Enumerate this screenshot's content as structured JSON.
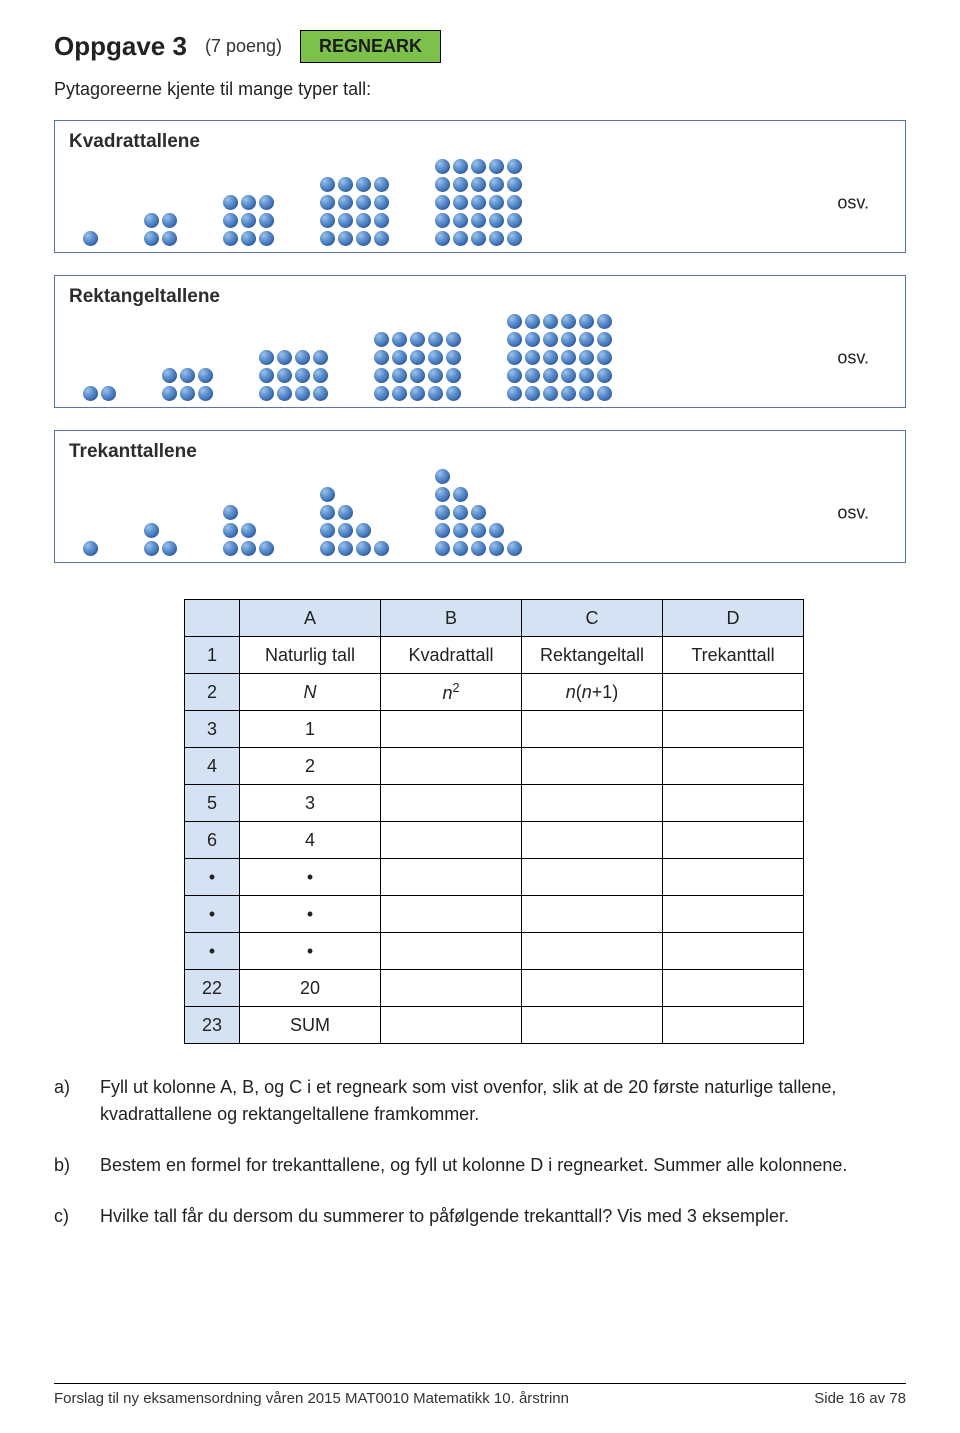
{
  "colors": {
    "panel_border": "#5b75aa",
    "sheet_header_bg": "#d5e2f4",
    "dot_gradient": [
      "#9dc2e8",
      "#5b8fce",
      "#3d6fb4",
      "#2f5a98"
    ],
    "badge_bg": "#7cc24a",
    "table_border": "#000000"
  },
  "header": {
    "task_label": "Oppgave 3",
    "points": "(7 poeng)",
    "badge": "REGNEARK"
  },
  "intro": "Pytagoreerne kjente til mange typer tall:",
  "panels": [
    {
      "title": "Kvadrattallene",
      "osv": "osv.",
      "kind": "grid",
      "shapes": [
        {
          "rows": 1,
          "cols": 1
        },
        {
          "rows": 2,
          "cols": 2
        },
        {
          "rows": 3,
          "cols": 3
        },
        {
          "rows": 4,
          "cols": 4
        },
        {
          "rows": 5,
          "cols": 5
        }
      ]
    },
    {
      "title": "Rektangeltallene",
      "osv": "osv.",
      "kind": "grid",
      "shapes": [
        {
          "rows": 1,
          "cols": 2
        },
        {
          "rows": 2,
          "cols": 3
        },
        {
          "rows": 3,
          "cols": 4
        },
        {
          "rows": 4,
          "cols": 5
        },
        {
          "rows": 5,
          "cols": 6
        }
      ]
    },
    {
      "title": "Trekanttallene",
      "osv": "osv.",
      "kind": "triangle",
      "shapes": [
        {
          "rows": 1
        },
        {
          "rows": 2
        },
        {
          "rows": 3
        },
        {
          "rows": 4
        },
        {
          "rows": 5
        }
      ]
    }
  ],
  "sheet": {
    "col_headers": [
      "A",
      "B",
      "C",
      "D"
    ],
    "rows": [
      {
        "idx": "1",
        "cells": [
          "Naturlig tall",
          "Kvadrattall",
          "Rektangeltall",
          "Trekanttall"
        ]
      },
      {
        "idx": "2",
        "cells": [
          "<span class='italic'>N</span>",
          "<span class='italic'>n</span><sup>2</sup>",
          "<span class='italic'>n</span>(<span class='italic'>n</span>+1)",
          ""
        ]
      },
      {
        "idx": "3",
        "cells": [
          "1",
          "",
          "",
          ""
        ]
      },
      {
        "idx": "4",
        "cells": [
          "2",
          "",
          "",
          ""
        ]
      },
      {
        "idx": "5",
        "cells": [
          "3",
          "",
          "",
          ""
        ]
      },
      {
        "idx": "6",
        "cells": [
          "4",
          "",
          "",
          ""
        ]
      },
      {
        "idx": "•",
        "cells": [
          "•",
          "",
          "",
          ""
        ]
      },
      {
        "idx": "•",
        "cells": [
          "•",
          "",
          "",
          ""
        ]
      },
      {
        "idx": "•",
        "cells": [
          "•",
          "",
          "",
          ""
        ]
      },
      {
        "idx": "22",
        "cells": [
          "20",
          "",
          "",
          ""
        ]
      },
      {
        "idx": "23",
        "cells": [
          "SUM",
          "",
          "",
          ""
        ]
      }
    ]
  },
  "questions": [
    {
      "label": "a)",
      "text": "Fyll ut kolonne A, B, og  C  i et regneark som vist ovenfor, slik at de 20 første naturlige tallene, kvadrattallene og rektangeltallene framkommer."
    },
    {
      "label": "b)",
      "text": "Bestem en formel for trekanttallene, og fyll ut kolonne D i regnearket. Summer alle kolonnene."
    },
    {
      "label": "c)",
      "text": "Hvilke tall får du dersom du summerer to påfølgende trekanttall? Vis med 3 eksempler."
    }
  ],
  "footer": {
    "left": "Forslag til ny eksamensordning våren 2015  MAT0010 Matematikk 10. årstrinn",
    "right": "Side 16 av 78"
  }
}
